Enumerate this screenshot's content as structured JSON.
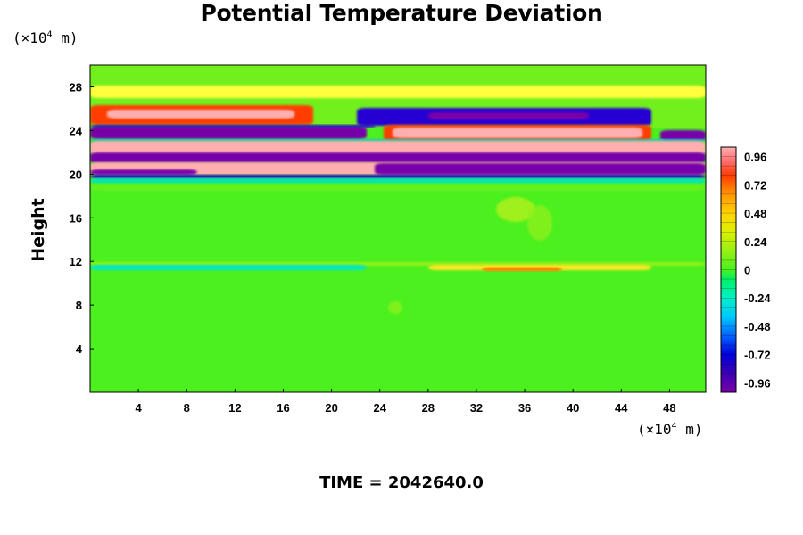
{
  "chart_data": {
    "type": "heatmap",
    "title": "Potential Temperature Deviation",
    "ylabel": "Height",
    "xunit_prefix": "(×10",
    "xunit_exp": "4",
    "xunit_suffix": " m)",
    "yunit_prefix": "(×10",
    "yunit_exp": "4",
    "yunit_suffix": " m)",
    "footer": "TIME = 2042640.0",
    "xlim": [
      0,
      51
    ],
    "ylim": [
      0,
      30
    ],
    "x_ticks": [
      4,
      8,
      12,
      16,
      20,
      24,
      28,
      32,
      36,
      40,
      44,
      48
    ],
    "y_ticks": [
      4,
      8,
      12,
      16,
      20,
      24,
      28
    ],
    "colorbar": {
      "range": [
        -1.04,
        1.04
      ],
      "tick_values": [
        0.96,
        0.72,
        0.48,
        0.24,
        0,
        -0.24,
        -0.48,
        -0.72,
        -0.96
      ],
      "tick_labels": [
        "0.96",
        "0.72",
        "0.48",
        "0.24",
        "0",
        "-0.24",
        "-0.48",
        "-0.72",
        "-0.96"
      ]
    },
    "colors": {
      "background_field": "#4cf01e",
      "max": "#ffafaf",
      "min": "#7800aa"
    }
  }
}
